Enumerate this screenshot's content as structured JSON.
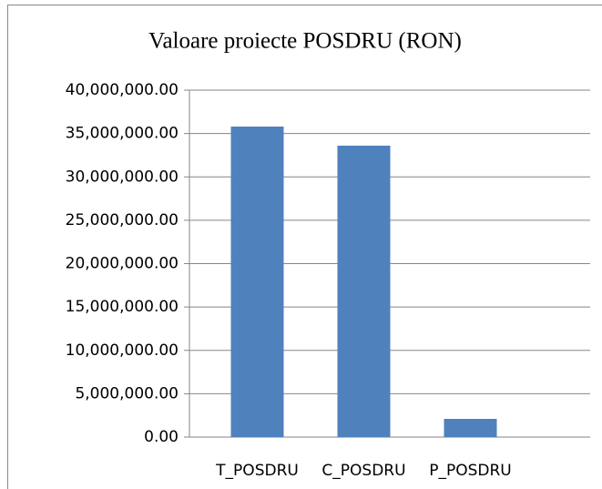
{
  "chart_data": {
    "type": "bar",
    "title": "Valoare proiecte POSDRU (RON)",
    "categories": [
      "T_POSDRU",
      "C_POSDRU",
      "P_POSDRU"
    ],
    "values": [
      35800000,
      33600000,
      2100000
    ],
    "color": "#4f81bd",
    "ylim": [
      0,
      40000000
    ],
    "yticks": [
      {
        "value": 0,
        "label": "0.00"
      },
      {
        "value": 5000000,
        "label": "5,000,000.00"
      },
      {
        "value": 10000000,
        "label": "10,000,000.00"
      },
      {
        "value": 15000000,
        "label": "15,000,000.00"
      },
      {
        "value": 20000000,
        "label": "20,000,000.00"
      },
      {
        "value": 25000000,
        "label": "25,000,000.00"
      },
      {
        "value": 30000000,
        "label": "30,000,000.00"
      },
      {
        "value": 35000000,
        "label": "35,000,000.00"
      },
      {
        "value": 40000000,
        "label": "40,000,000.00"
      }
    ],
    "grid": true
  }
}
